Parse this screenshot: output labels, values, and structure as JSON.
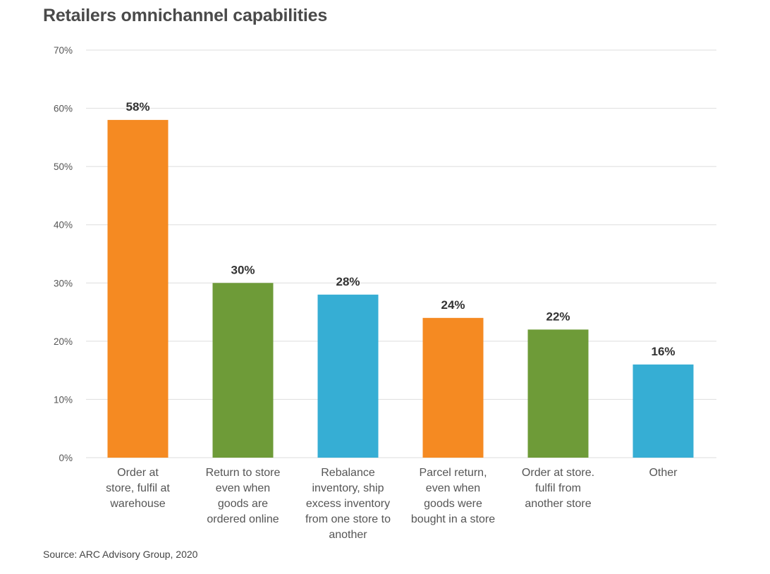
{
  "chart_data": {
    "type": "bar",
    "title": "Retailers omnichannel capabilities",
    "xlabel": "",
    "ylabel": "",
    "ylim": [
      0,
      70
    ],
    "yticks": [
      "0%",
      "10%",
      "20%",
      "30%",
      "40%",
      "50%",
      "60%",
      "70%"
    ],
    "grid": true,
    "legend": "none",
    "categories": [
      [
        "Order at",
        "store, fulfil at",
        "warehouse"
      ],
      [
        "Return to store",
        "even when",
        "goods are",
        "ordered online"
      ],
      [
        "Rebalance",
        "inventory, ship",
        "excess inventory",
        "from one store to",
        "another"
      ],
      [
        "Parcel return,",
        "even when",
        "goods were",
        "bought in a store"
      ],
      [
        "Order at store.",
        "fulfil from",
        "another store"
      ],
      [
        "Other"
      ]
    ],
    "values": [
      58,
      30,
      28,
      24,
      22,
      16
    ],
    "data_labels": [
      "58%",
      "30%",
      "28%",
      "24%",
      "22%",
      "16%"
    ],
    "colors": [
      "#f58a22",
      "#6e9b38",
      "#36aed4",
      "#f58a22",
      "#6e9b38",
      "#36aed4"
    ],
    "source": "Source: ARC Advisory Group, 2020"
  },
  "header": {
    "title": "Retailers omnichannel capabilities"
  },
  "footer": {
    "source": "Source: ARC Advisory Group, 2020"
  }
}
